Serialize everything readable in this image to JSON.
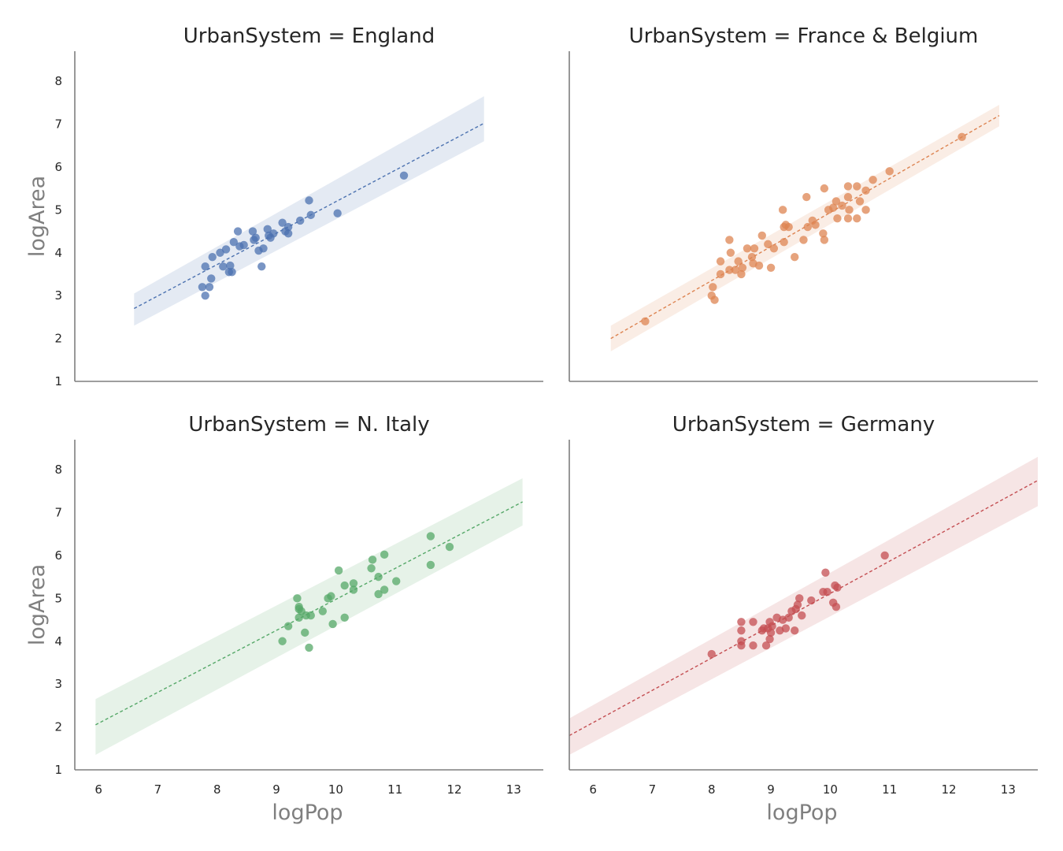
{
  "chart_data": {
    "type": "scatter",
    "ylabel": "logArea",
    "xlabel": "logPop",
    "xticks": [
      6,
      7,
      8,
      9,
      10,
      11,
      12,
      13
    ],
    "yticks": [
      1,
      2,
      3,
      4,
      5,
      6,
      7,
      8
    ],
    "xlim": [
      5.6,
      13.5
    ],
    "ylim": [
      1,
      8.7
    ],
    "grid": false,
    "panels": [
      {
        "title": "UrbanSystem = England",
        "color": "#4c72b0",
        "fit": {
          "x_start": 6.6,
          "x_end": 12.5,
          "y_start": 2.7,
          "y_end": 7.02,
          "ci_start": [
            2.3,
            3.05
          ],
          "ci_end": [
            6.6,
            7.65
          ]
        },
        "points": [
          [
            7.75,
            3.2
          ],
          [
            7.8,
            3.0
          ],
          [
            7.87,
            3.2
          ],
          [
            7.9,
            3.4
          ],
          [
            7.8,
            3.68
          ],
          [
            7.92,
            3.9
          ],
          [
            8.05,
            4.0
          ],
          [
            8.1,
            3.68
          ],
          [
            8.15,
            4.08
          ],
          [
            8.2,
            3.55
          ],
          [
            8.22,
            3.7
          ],
          [
            8.25,
            3.55
          ],
          [
            8.28,
            4.25
          ],
          [
            8.35,
            4.5
          ],
          [
            8.38,
            4.15
          ],
          [
            8.45,
            4.18
          ],
          [
            8.6,
            4.5
          ],
          [
            8.62,
            4.3
          ],
          [
            8.65,
            4.35
          ],
          [
            8.7,
            4.05
          ],
          [
            8.75,
            3.68
          ],
          [
            8.78,
            4.1
          ],
          [
            8.85,
            4.55
          ],
          [
            8.87,
            4.4
          ],
          [
            8.9,
            4.35
          ],
          [
            8.95,
            4.45
          ],
          [
            9.1,
            4.7
          ],
          [
            9.15,
            4.5
          ],
          [
            9.2,
            4.6
          ],
          [
            9.2,
            4.45
          ],
          [
            9.4,
            4.75
          ],
          [
            9.55,
            5.22
          ],
          [
            9.58,
            4.88
          ],
          [
            10.03,
            4.92
          ],
          [
            11.15,
            5.8
          ]
        ]
      },
      {
        "title": "UrbanSystem = France & Belgium",
        "color": "#dd8452",
        "fit": {
          "x_start": 6.3,
          "x_end": 12.85,
          "y_start": 2.0,
          "y_end": 7.2,
          "ci_start": [
            1.7,
            2.3
          ],
          "ci_end": [
            6.95,
            7.45
          ]
        },
        "points": [
          [
            6.88,
            2.4
          ],
          [
            8.0,
            3.0
          ],
          [
            8.02,
            3.2
          ],
          [
            8.05,
            2.9
          ],
          [
            8.15,
            3.8
          ],
          [
            8.15,
            3.5
          ],
          [
            8.3,
            4.3
          ],
          [
            8.3,
            3.6
          ],
          [
            8.32,
            4.0
          ],
          [
            8.4,
            3.6
          ],
          [
            8.45,
            3.8
          ],
          [
            8.5,
            3.5
          ],
          [
            8.52,
            3.65
          ],
          [
            8.6,
            4.1
          ],
          [
            8.68,
            3.9
          ],
          [
            8.7,
            3.75
          ],
          [
            8.72,
            4.1
          ],
          [
            8.8,
            3.7
          ],
          [
            8.85,
            4.4
          ],
          [
            8.95,
            4.2
          ],
          [
            9.0,
            3.65
          ],
          [
            9.05,
            4.1
          ],
          [
            9.2,
            5.0
          ],
          [
            9.22,
            4.6
          ],
          [
            9.22,
            4.25
          ],
          [
            9.25,
            4.65
          ],
          [
            9.3,
            4.6
          ],
          [
            9.4,
            3.9
          ],
          [
            9.55,
            4.3
          ],
          [
            9.6,
            5.3
          ],
          [
            9.62,
            4.6
          ],
          [
            9.7,
            4.75
          ],
          [
            9.75,
            4.65
          ],
          [
            9.88,
            4.45
          ],
          [
            9.9,
            5.5
          ],
          [
            9.9,
            4.3
          ],
          [
            9.97,
            5.0
          ],
          [
            10.05,
            5.05
          ],
          [
            10.1,
            5.2
          ],
          [
            10.12,
            4.8
          ],
          [
            10.2,
            5.1
          ],
          [
            10.3,
            5.55
          ],
          [
            10.3,
            5.3
          ],
          [
            10.32,
            5.0
          ],
          [
            10.3,
            4.8
          ],
          [
            10.45,
            5.55
          ],
          [
            10.45,
            4.8
          ],
          [
            10.5,
            5.2
          ],
          [
            10.6,
            5.0
          ],
          [
            10.6,
            5.45
          ],
          [
            10.72,
            5.7
          ],
          [
            11.0,
            5.9
          ],
          [
            12.22,
            6.7
          ]
        ]
      },
      {
        "title": "UrbanSystem = N. Italy",
        "color": "#55a868",
        "fit": {
          "x_start": 5.95,
          "x_end": 13.15,
          "y_start": 2.05,
          "y_end": 7.25,
          "ci_start": [
            1.35,
            2.65
          ],
          "ci_end": [
            6.7,
            7.8
          ]
        },
        "points": [
          [
            9.1,
            4.0
          ],
          [
            9.2,
            4.35
          ],
          [
            9.35,
            5.0
          ],
          [
            9.38,
            4.8
          ],
          [
            9.38,
            4.75
          ],
          [
            9.38,
            4.55
          ],
          [
            9.42,
            4.7
          ],
          [
            9.48,
            4.2
          ],
          [
            9.5,
            4.6
          ],
          [
            9.55,
            3.85
          ],
          [
            9.58,
            4.6
          ],
          [
            9.78,
            4.7
          ],
          [
            9.87,
            5.0
          ],
          [
            9.92,
            5.05
          ],
          [
            9.95,
            4.4
          ],
          [
            10.05,
            5.65
          ],
          [
            10.15,
            4.55
          ],
          [
            10.15,
            5.3
          ],
          [
            10.3,
            5.35
          ],
          [
            10.3,
            5.2
          ],
          [
            10.6,
            5.7
          ],
          [
            10.62,
            5.9
          ],
          [
            10.72,
            5.5
          ],
          [
            10.72,
            5.1
          ],
          [
            10.82,
            5.2
          ],
          [
            10.82,
            6.02
          ],
          [
            11.02,
            5.4
          ],
          [
            11.6,
            6.45
          ],
          [
            11.6,
            5.78
          ],
          [
            11.92,
            6.2
          ]
        ]
      },
      {
        "title": "UrbanSystem = Germany",
        "color": "#c44e52",
        "fit": {
          "x_start": 5.6,
          "x_end": 13.5,
          "y_start": 1.8,
          "y_end": 7.75,
          "ci_start": [
            1.35,
            2.2
          ],
          "ci_end": [
            7.15,
            8.3
          ]
        },
        "points": [
          [
            8.0,
            3.7
          ],
          [
            8.5,
            4.45
          ],
          [
            8.5,
            4.25
          ],
          [
            8.5,
            4.0
          ],
          [
            8.5,
            3.9
          ],
          [
            8.7,
            4.45
          ],
          [
            8.7,
            3.9
          ],
          [
            8.85,
            4.25
          ],
          [
            8.88,
            4.3
          ],
          [
            8.92,
            3.9
          ],
          [
            8.95,
            4.3
          ],
          [
            8.98,
            4.45
          ],
          [
            8.98,
            4.05
          ],
          [
            9.0,
            4.2
          ],
          [
            9.02,
            4.35
          ],
          [
            9.1,
            4.55
          ],
          [
            9.15,
            4.25
          ],
          [
            9.2,
            4.5
          ],
          [
            9.25,
            4.3
          ],
          [
            9.3,
            4.55
          ],
          [
            9.35,
            4.7
          ],
          [
            9.4,
            4.25
          ],
          [
            9.42,
            4.75
          ],
          [
            9.45,
            4.85
          ],
          [
            9.48,
            5.0
          ],
          [
            9.52,
            4.6
          ],
          [
            9.68,
            4.95
          ],
          [
            9.88,
            5.15
          ],
          [
            9.92,
            5.6
          ],
          [
            9.95,
            5.15
          ],
          [
            10.05,
            4.9
          ],
          [
            10.08,
            5.3
          ],
          [
            10.1,
            4.8
          ],
          [
            10.12,
            5.25
          ],
          [
            10.92,
            6.0
          ]
        ]
      }
    ]
  }
}
